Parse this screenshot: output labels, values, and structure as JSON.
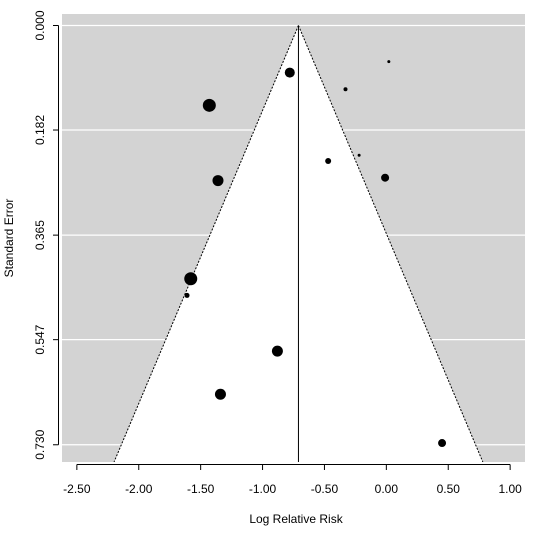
{
  "chart_data": {
    "type": "scatter",
    "subtype": "funnel-plot",
    "title": "",
    "xlabel": "Log Relative Risk",
    "ylabel": "Standard Error",
    "xlim": [
      -2.62,
      1.12
    ],
    "ylim": [
      0.76,
      -0.02
    ],
    "y_reversed": true,
    "x_ticks": [
      -2.5,
      -2.0,
      -1.5,
      -1.0,
      -0.5,
      0.0,
      0.5,
      1.0
    ],
    "x_tick_labels": [
      "-2.50",
      "-2.00",
      "-1.50",
      "-1.00",
      "-0.50",
      "0.00",
      "0.50",
      "1.00"
    ],
    "y_ticks": [
      0.0,
      0.182,
      0.365,
      0.547,
      0.73
    ],
    "y_tick_labels": [
      "0.000",
      "0.182",
      "0.365",
      "0.547",
      "0.730"
    ],
    "grid": "horizontal",
    "background_color": "#d3d3d3",
    "funnel_color": "#ffffff",
    "point_color": "#000000",
    "summary_estimate": -0.71,
    "funnel_multiplier": 1.96,
    "points": [
      {
        "x": -0.78,
        "y": 0.082,
        "size": 5
      },
      {
        "x": 0.02,
        "y": 0.063,
        "size": 1.5
      },
      {
        "x": -0.33,
        "y": 0.111,
        "size": 2
      },
      {
        "x": -1.43,
        "y": 0.139,
        "size": 6.5
      },
      {
        "x": -0.47,
        "y": 0.236,
        "size": 3
      },
      {
        "x": -0.22,
        "y": 0.226,
        "size": 1.5
      },
      {
        "x": -0.01,
        "y": 0.265,
        "size": 4
      },
      {
        "x": -1.36,
        "y": 0.27,
        "size": 5.5
      },
      {
        "x": -1.58,
        "y": 0.441,
        "size": 6.5
      },
      {
        "x": -1.61,
        "y": 0.47,
        "size": 2.5
      },
      {
        "x": -0.88,
        "y": 0.567,
        "size": 5.5
      },
      {
        "x": -1.34,
        "y": 0.642,
        "size": 5.5
      },
      {
        "x": 0.45,
        "y": 0.727,
        "size": 4
      }
    ]
  }
}
